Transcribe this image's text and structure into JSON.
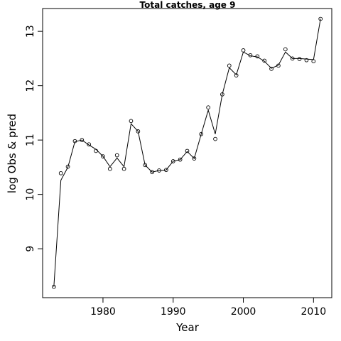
{
  "chart_data": {
    "type": "line",
    "title": "Total catches, age 9",
    "xlabel": "Year",
    "ylabel": "log Obs & pred",
    "xlim": [
      1971.4,
      2012.6
    ],
    "ylim": [
      8.1,
      13.42
    ],
    "x_ticks": [
      1980,
      1990,
      2000,
      2010
    ],
    "y_ticks": [
      9,
      10,
      11,
      12,
      13
    ],
    "grid": false,
    "series": [
      {
        "style": "points",
        "x": [
          1973,
          1974,
          1975,
          1976,
          1977,
          1978,
          1979,
          1980,
          1981,
          1982,
          1983,
          1984,
          1985,
          1986,
          1987,
          1988,
          1989,
          1990,
          1991,
          1992,
          1993,
          1994,
          1995,
          1996,
          1997,
          1998,
          1999,
          2000,
          2001,
          2002,
          2003,
          2004,
          2005,
          2006,
          2007,
          2008,
          2009,
          2010,
          2011
        ],
        "values": [
          8.3,
          10.39,
          10.51,
          10.98,
          11.0,
          10.92,
          10.8,
          10.7,
          10.47,
          10.72,
          10.47,
          11.35,
          11.16,
          10.54,
          10.41,
          10.44,
          10.45,
          10.61,
          10.64,
          10.8,
          10.66,
          11.11,
          11.6,
          11.02,
          11.84,
          12.37,
          12.19,
          12.65,
          12.56,
          12.54,
          12.46,
          12.31,
          12.37,
          12.67,
          12.5,
          12.49,
          12.47,
          12.45,
          13.23
        ]
      },
      {
        "style": "line",
        "x": [
          1973,
          1974,
          1975,
          1976,
          1977,
          1978,
          1979,
          1980,
          1981,
          1982,
          1983,
          1984,
          1985,
          1986,
          1987,
          1988,
          1989,
          1990,
          1991,
          1992,
          1993,
          1994,
          1995,
          1996,
          1997,
          1998,
          1999,
          2000,
          2001,
          2002,
          2003,
          2004,
          2005,
          2006,
          2007,
          2008,
          2009,
          2010,
          2011
        ],
        "values": [
          8.3,
          10.26,
          10.5,
          10.97,
          11.0,
          10.91,
          10.83,
          10.7,
          10.51,
          10.67,
          10.51,
          11.3,
          11.16,
          10.54,
          10.41,
          10.44,
          10.45,
          10.61,
          10.64,
          10.79,
          10.66,
          11.11,
          11.55,
          11.11,
          11.84,
          12.33,
          12.2,
          12.62,
          12.55,
          12.53,
          12.45,
          12.32,
          12.38,
          12.62,
          12.5,
          12.5,
          12.49,
          12.48,
          13.23
        ]
      }
    ]
  }
}
